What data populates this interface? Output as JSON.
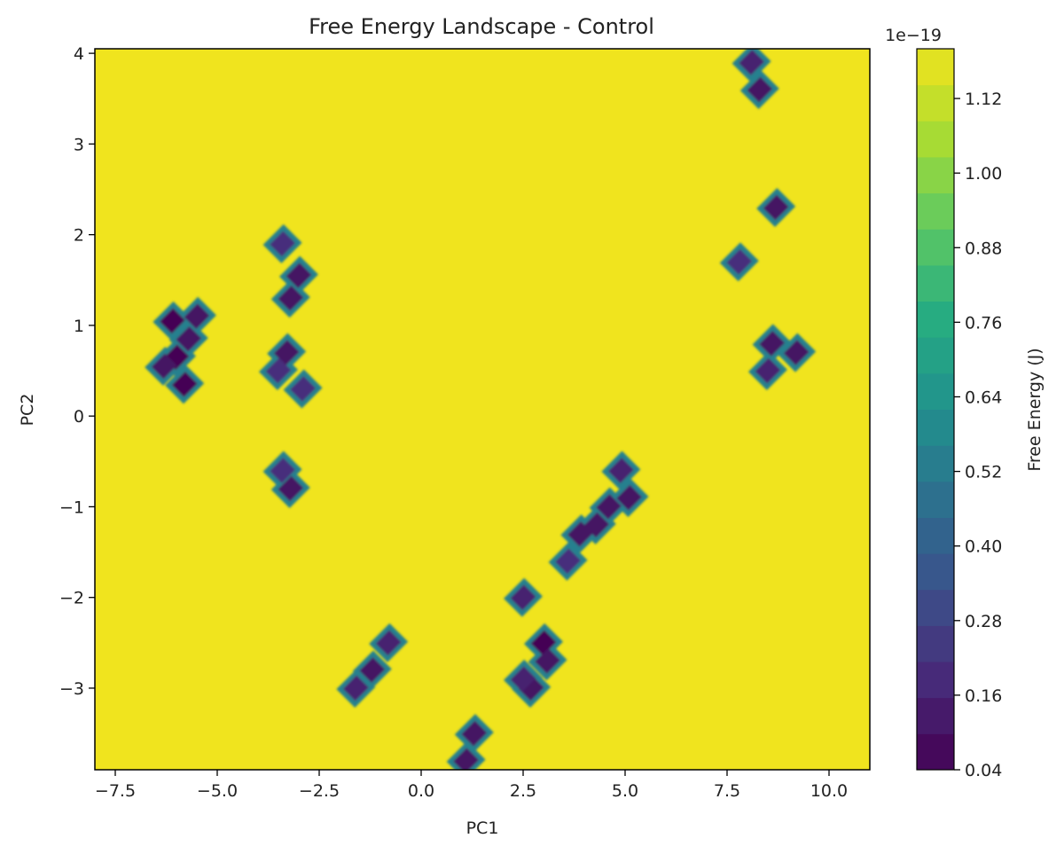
{
  "chart_data": {
    "type": "heatmap",
    "subtype": "filled contour",
    "title": "Free Energy Landscape - Control",
    "xlabel": "PC1",
    "ylabel": "PC2",
    "xlim": [
      -8.0,
      11.0
    ],
    "ylim": [
      -3.9,
      4.05
    ],
    "xticks": [
      {
        "value": -7.5,
        "label": "−7.5"
      },
      {
        "value": -5.0,
        "label": "−5.0"
      },
      {
        "value": -2.5,
        "label": "−2.5"
      },
      {
        "value": 0.0,
        "label": "0.0"
      },
      {
        "value": 2.5,
        "label": "2.5"
      },
      {
        "value": 5.0,
        "label": "5.0"
      },
      {
        "value": 7.5,
        "label": "7.5"
      },
      {
        "value": 10.0,
        "label": "10.0"
      }
    ],
    "yticks": [
      {
        "value": -3,
        "label": "−3"
      },
      {
        "value": -2,
        "label": "−2"
      },
      {
        "value": -1,
        "label": "−1"
      },
      {
        "value": 0,
        "label": "0"
      },
      {
        "value": 1,
        "label": "1"
      },
      {
        "value": 2,
        "label": "2"
      },
      {
        "value": 3,
        "label": "3"
      },
      {
        "value": 4,
        "label": "4"
      }
    ],
    "colormap": "viridis",
    "background_value": 1.2,
    "colorbar": {
      "label": "Free Energy (J)",
      "offset_label": "1e−19",
      "range": [
        0.04,
        1.2
      ],
      "ticks": [
        {
          "value": 0.04,
          "label": "0.04"
        },
        {
          "value": 0.16,
          "label": "0.16"
        },
        {
          "value": 0.28,
          "label": "0.28"
        },
        {
          "value": 0.4,
          "label": "0.40"
        },
        {
          "value": 0.52,
          "label": "0.52"
        },
        {
          "value": 0.64,
          "label": "0.64"
        },
        {
          "value": 0.76,
          "label": "0.76"
        },
        {
          "value": 0.88,
          "label": "0.88"
        },
        {
          "value": 1.0,
          "label": "1.00"
        },
        {
          "value": 1.12,
          "label": "1.12"
        }
      ]
    },
    "low_energy_basins": [
      {
        "x": -6.1,
        "y": 1.05,
        "value": 0.04
      },
      {
        "x": -6.0,
        "y": 0.65,
        "value": 0.04
      },
      {
        "x": -5.8,
        "y": 0.35,
        "value": 0.04
      },
      {
        "x": -6.3,
        "y": 0.55,
        "value": 0.1
      },
      {
        "x": -5.5,
        "y": 1.1,
        "value": 0.1
      },
      {
        "x": -5.7,
        "y": 0.85,
        "value": 0.1
      },
      {
        "x": -3.3,
        "y": 0.7,
        "value": 0.1
      },
      {
        "x": -3.0,
        "y": 1.55,
        "value": 0.1
      },
      {
        "x": -3.2,
        "y": 1.3,
        "value": 0.1
      },
      {
        "x": -2.9,
        "y": 0.3,
        "value": 0.2
      },
      {
        "x": -3.5,
        "y": 0.5,
        "value": 0.2
      },
      {
        "x": -3.4,
        "y": 1.9,
        "value": 0.2
      },
      {
        "x": -3.2,
        "y": -0.8,
        "value": 0.1
      },
      {
        "x": -3.4,
        "y": -0.6,
        "value": 0.2
      },
      {
        "x": -1.2,
        "y": -2.8,
        "value": 0.1
      },
      {
        "x": -0.8,
        "y": -2.5,
        "value": 0.15
      },
      {
        "x": -1.6,
        "y": -3.0,
        "value": 0.15
      },
      {
        "x": 1.3,
        "y": -3.5,
        "value": 0.1
      },
      {
        "x": 1.1,
        "y": -3.8,
        "value": 0.1
      },
      {
        "x": 2.7,
        "y": -3.0,
        "value": 0.1
      },
      {
        "x": 3.0,
        "y": -2.5,
        "value": 0.04
      },
      {
        "x": 3.1,
        "y": -2.7,
        "value": 0.1
      },
      {
        "x": 2.5,
        "y": -2.9,
        "value": 0.15
      },
      {
        "x": 2.5,
        "y": -2.0,
        "value": 0.15
      },
      {
        "x": 3.9,
        "y": -1.3,
        "value": 0.1
      },
      {
        "x": 4.3,
        "y": -1.2,
        "value": 0.1
      },
      {
        "x": 4.6,
        "y": -1.0,
        "value": 0.1
      },
      {
        "x": 5.1,
        "y": -0.9,
        "value": 0.1
      },
      {
        "x": 4.9,
        "y": -0.6,
        "value": 0.15
      },
      {
        "x": 3.6,
        "y": -1.6,
        "value": 0.2
      },
      {
        "x": 8.3,
        "y": 3.6,
        "value": 0.1
      },
      {
        "x": 8.1,
        "y": 3.9,
        "value": 0.15
      },
      {
        "x": 8.7,
        "y": 2.3,
        "value": 0.1
      },
      {
        "x": 8.6,
        "y": 0.8,
        "value": 0.1
      },
      {
        "x": 9.2,
        "y": 0.7,
        "value": 0.1
      },
      {
        "x": 8.5,
        "y": 0.5,
        "value": 0.15
      },
      {
        "x": 7.8,
        "y": 1.7,
        "value": 0.2
      }
    ]
  }
}
